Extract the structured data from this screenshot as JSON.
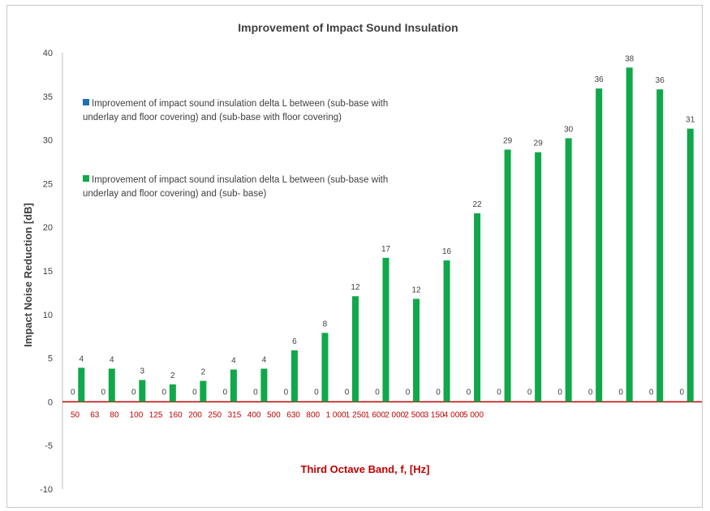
{
  "chart_data": {
    "type": "bar",
    "title": "Improvement of Impact Sound Insulation",
    "xlabel": "Third Octave Band, f, [Hz]",
    "ylabel": "Impact Noise Reduction [dB]",
    "ylim": [
      -10,
      40
    ],
    "yticks": [
      -10,
      -5,
      0,
      5,
      10,
      15,
      20,
      25,
      30,
      35,
      40
    ],
    "grid": false,
    "legend_position": "upper-left",
    "categories": [
      "50",
      "63",
      "80",
      "100",
      "125",
      "160",
      "200",
      "250",
      "315",
      "400",
      "500",
      "630",
      "800",
      "1 000",
      "1 250",
      "1 600",
      "2 000",
      "2 500",
      "3 150",
      "4 000",
      "5 000"
    ],
    "series": [
      {
        "name": "Improvement of impact sound insulation delta L between (sub-base with underlay and floor covering) and (sub-base with floor covering)",
        "color": "#1f6fb4",
        "values": [
          0,
          0,
          0,
          0,
          0,
          0,
          0,
          0,
          0,
          0,
          0,
          0,
          0,
          0,
          0,
          0,
          0,
          0,
          0,
          0,
          0
        ],
        "labels": [
          "0",
          "0",
          "0",
          "0",
          "0",
          "0",
          "0",
          "0",
          "0",
          "0",
          "0",
          "0",
          "0",
          "0",
          "0",
          "0",
          "0",
          "0",
          "0",
          "0",
          "0"
        ]
      },
      {
        "name": "Improvement of impact sound insulation delta L between (sub-base with underlay and floor covering) and (sub- base)",
        "color": "#10a84a",
        "values": [
          3.9,
          3.8,
          2.5,
          2.0,
          2.4,
          3.7,
          3.8,
          5.9,
          7.9,
          12.1,
          16.5,
          11.8,
          16.2,
          21.6,
          28.9,
          28.6,
          30.2,
          35.9,
          38.3,
          35.8,
          31.3
        ],
        "labels": [
          "4",
          "4",
          "3",
          "2",
          "2",
          "4",
          "4",
          "6",
          "8",
          "12",
          "17",
          "12",
          "16",
          "22",
          "29",
          "29",
          "30",
          "36",
          "38",
          "36",
          "31"
        ]
      }
    ]
  },
  "colors": {
    "axis_zero_line": "#c00000",
    "category_label": "#c00000",
    "xlabel": "#c00000",
    "text": "#404040"
  }
}
